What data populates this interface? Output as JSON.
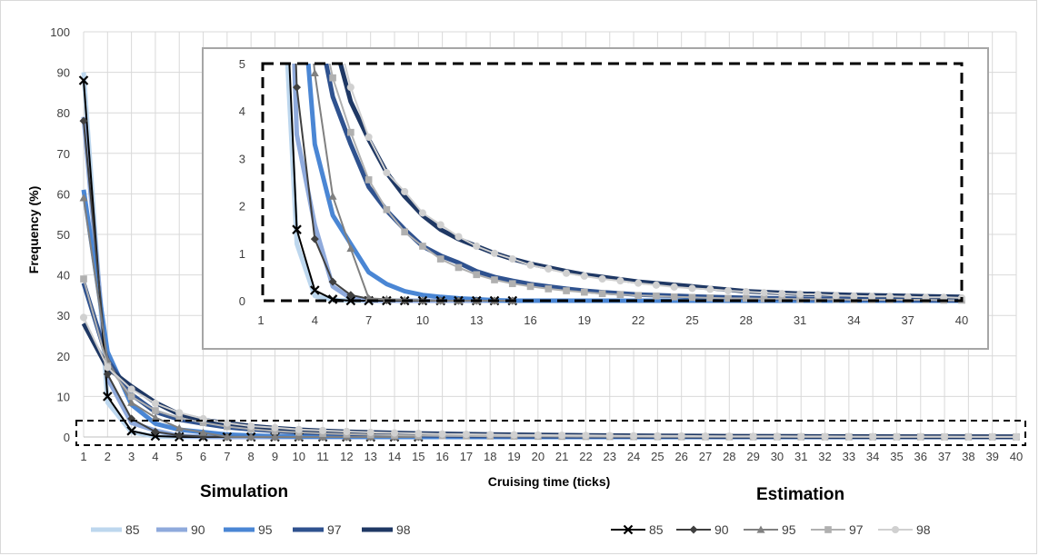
{
  "chart_data": {
    "type": "line",
    "ylabel": "Frequency (%)",
    "xlabel": "Cruising time (ticks)",
    "main": {
      "xlim": [
        1,
        40
      ],
      "ylim": [
        0,
        100
      ],
      "yticks": [
        0,
        10,
        20,
        30,
        40,
        50,
        60,
        70,
        80,
        90,
        100
      ],
      "xticks": [
        1,
        2,
        3,
        4,
        5,
        6,
        7,
        8,
        9,
        10,
        11,
        12,
        13,
        14,
        15,
        16,
        17,
        18,
        19,
        20,
        21,
        22,
        23,
        24,
        25,
        26,
        27,
        28,
        29,
        30,
        31,
        32,
        33,
        34,
        35,
        36,
        37,
        38,
        39,
        40
      ]
    },
    "inset": {
      "xlim": [
        1,
        40
      ],
      "ylim": [
        0,
        5
      ],
      "yticks": [
        0,
        1,
        2,
        3,
        4,
        5
      ],
      "xticks": [
        1,
        4,
        7,
        10,
        13,
        16,
        19,
        22,
        25,
        28,
        31,
        34,
        37,
        40
      ]
    },
    "simulation": {
      "title": "Simulation",
      "series": [
        {
          "name": "85",
          "color": "#bdd7ee",
          "x": [
            1,
            2,
            3,
            4,
            5,
            6,
            7,
            8,
            40
          ],
          "y": [
            90,
            8.5,
            1.2,
            0.1,
            0.02,
            0,
            0,
            0,
            0
          ]
        },
        {
          "name": "90",
          "color": "#8faadc",
          "x": [
            1,
            2,
            3,
            4,
            5,
            6,
            7,
            8,
            9,
            40
          ],
          "y": [
            79,
            14.5,
            3.5,
            1.6,
            0.3,
            0.05,
            0,
            0,
            0,
            0
          ]
        },
        {
          "name": "95",
          "color": "#4a86d4",
          "x": [
            1,
            2,
            3,
            4,
            5,
            6,
            7,
            8,
            9,
            10,
            11,
            12,
            13,
            14,
            15,
            40
          ],
          "y": [
            61,
            21,
            8,
            3.3,
            1.8,
            1.2,
            0.6,
            0.35,
            0.2,
            0.12,
            0.08,
            0.05,
            0.03,
            0.01,
            0,
            0
          ]
        },
        {
          "name": "97",
          "color": "#2f528f",
          "x": [
            1,
            2,
            3,
            4,
            5,
            6,
            7,
            8,
            9,
            10,
            11,
            12,
            13,
            14,
            15,
            16,
            17,
            18,
            19,
            20,
            22,
            25,
            28,
            31,
            34,
            37,
            40
          ],
          "y": [
            38,
            19,
            10.5,
            6.2,
            4.3,
            3.3,
            2.4,
            1.9,
            1.5,
            1.15,
            0.95,
            0.8,
            0.62,
            0.5,
            0.42,
            0.35,
            0.3,
            0.25,
            0.21,
            0.18,
            0.13,
            0.09,
            0.06,
            0.04,
            0.03,
            0.02,
            0.01
          ]
        },
        {
          "name": "98",
          "color": "#1f3864",
          "x": [
            1,
            2,
            3,
            4,
            5,
            6,
            7,
            8,
            9,
            10,
            11,
            12,
            13,
            14,
            15,
            16,
            17,
            18,
            19,
            20,
            22,
            25,
            28,
            31,
            34,
            37,
            40
          ],
          "y": [
            28,
            17,
            12.5,
            8.5,
            5.6,
            4.2,
            3.4,
            2.7,
            2.2,
            1.8,
            1.5,
            1.3,
            1.15,
            1,
            0.88,
            0.78,
            0.7,
            0.62,
            0.55,
            0.5,
            0.4,
            0.3,
            0.2,
            0.15,
            0.12,
            0.1,
            0.08
          ]
        }
      ]
    },
    "estimation": {
      "title": "Estimation",
      "series": [
        {
          "name": "85",
          "color": "#000000",
          "marker": "x",
          "x": [
            1,
            2,
            3,
            4,
            5,
            6,
            7,
            8,
            9,
            10,
            11,
            12,
            13,
            14,
            15
          ],
          "y": [
            88,
            10,
            1.5,
            0.22,
            0.03,
            0,
            0,
            0,
            0,
            0,
            0,
            0,
            0,
            0,
            0
          ]
        },
        {
          "name": "90",
          "color": "#404040",
          "marker": "diamond",
          "x": [
            1,
            2,
            3,
            4,
            5,
            6,
            7,
            8,
            9,
            10,
            11,
            12,
            13,
            14,
            15
          ],
          "y": [
            78,
            15.5,
            4.5,
            1.3,
            0.4,
            0.12,
            0.04,
            0.01,
            0,
            0,
            0,
            0,
            0,
            0,
            0
          ]
        },
        {
          "name": "95",
          "color": "#808080",
          "marker": "triangle",
          "x": [
            1,
            2,
            3,
            4,
            5,
            6,
            7,
            8,
            9,
            10,
            11,
            12,
            13,
            14,
            15
          ],
          "y": [
            59,
            19,
            8.5,
            4.8,
            2.2,
            1.1,
            0.05,
            0.03,
            0.02,
            0.01,
            0,
            0,
            0,
            0,
            0
          ]
        },
        {
          "name": "97",
          "color": "#b0b0b0",
          "marker": "square",
          "x": [
            1,
            2,
            3,
            4,
            5,
            6,
            7,
            8,
            9,
            10,
            11,
            12,
            13,
            14,
            15,
            16,
            17,
            18,
            19,
            20,
            21,
            22,
            23,
            24,
            25,
            26,
            27,
            28,
            29,
            30,
            31,
            32,
            33,
            34,
            35,
            36,
            37,
            38,
            39,
            40
          ],
          "y": [
            39,
            17.5,
            10,
            6.5,
            4.7,
            3.55,
            2.55,
            1.92,
            1.45,
            1.15,
            0.88,
            0.7,
            0.55,
            0.44,
            0.36,
            0.3,
            0.25,
            0.21,
            0.18,
            0.15,
            0.13,
            0.11,
            0.1,
            0.08,
            0.07,
            0.06,
            0.05,
            0.05,
            0.04,
            0.04,
            0.03,
            0.03,
            0.03,
            0.02,
            0.02,
            0.02,
            0.02,
            0.02,
            0.01,
            0.01
          ]
        },
        {
          "name": "98",
          "color": "#d0d0d0",
          "marker": "circle",
          "x": [
            1,
            2,
            3,
            4,
            5,
            6,
            7,
            8,
            9,
            10,
            11,
            12,
            13,
            14,
            15,
            16,
            17,
            18,
            19,
            20,
            21,
            22,
            23,
            24,
            25,
            26,
            27,
            28,
            29,
            30,
            31,
            32,
            33,
            34,
            35,
            36,
            37,
            38,
            39,
            40
          ],
          "y": [
            29.5,
            17.2,
            11.8,
            8.3,
            6,
            4.5,
            3.45,
            2.7,
            2.3,
            1.85,
            1.6,
            1.35,
            1.15,
            1,
            0.88,
            0.75,
            0.67,
            0.58,
            0.52,
            0.46,
            0.42,
            0.37,
            0.33,
            0.29,
            0.26,
            0.24,
            0.21,
            0.19,
            0.17,
            0.15,
            0.14,
            0.13,
            0.11,
            0.1,
            0.09,
            0.09,
            0.08,
            0.07,
            0.07,
            0.06
          ]
        }
      ]
    }
  }
}
